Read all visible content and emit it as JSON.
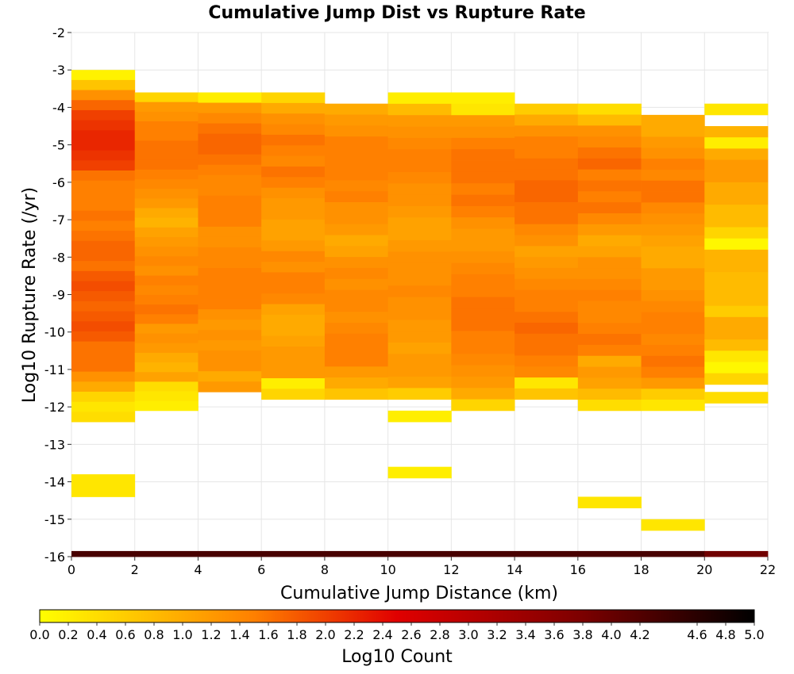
{
  "chart_data": {
    "type": "heatmap",
    "title": "Cumulative Jump Dist vs Rupture Rate",
    "xlabel": "Cumulative Jump Distance (km)",
    "ylabel": "Log10 Rupture Rate (/yr)",
    "xlim": [
      0,
      22
    ],
    "ylim": [
      -16,
      -2
    ],
    "x_ticks": [
      "0",
      "2",
      "4",
      "6",
      "8",
      "10",
      "12",
      "14",
      "16",
      "18",
      "20",
      "22"
    ],
    "y_ticks": [
      "-2",
      "-3",
      "-4",
      "-5",
      "-6",
      "-7",
      "-8",
      "-9",
      "-10",
      "-11",
      "-12",
      "-13",
      "-14",
      "-15",
      "-16"
    ],
    "x_bin_width": 2,
    "y_bin_height": 0.3,
    "grid": true,
    "colorbar": {
      "label": "Log10 Count",
      "min": 0,
      "max": 5,
      "ticks": [
        "0.0",
        "0.2",
        "0.4",
        "0.6",
        "0.8",
        "1.0",
        "1.2",
        "1.4",
        "1.6",
        "1.8",
        "2.0",
        "2.2",
        "2.4",
        "2.6",
        "2.8",
        "3.0",
        "3.2",
        "3.4",
        "3.6",
        "3.8",
        "4.0",
        "4.2",
        "4.6",
        "4.8",
        "5.0"
      ],
      "colors": [
        "#ffff00",
        "#ff8000",
        "#e00000",
        "#800000",
        "#000000"
      ]
    },
    "columns": [
      {
        "x0": 0,
        "top": -3.0,
        "bottom": -12.4,
        "values": [
          0.15,
          0.7,
          1.3,
          1.7,
          2.0,
          2.1,
          2.2,
          2.2,
          2.1,
          2.0,
          1.6,
          1.5,
          1.5,
          1.5,
          1.6,
          1.5,
          1.6,
          1.7,
          1.7,
          1.6,
          1.8,
          1.9,
          1.8,
          1.7,
          1.8,
          1.9,
          1.8,
          1.6,
          1.6,
          1.6,
          1.3,
          1.0,
          0.5,
          0.3,
          0.4
        ]
      },
      {
        "x0": 2,
        "top": -3.6,
        "bottom": -12.1,
        "values": [
          0.5,
          1.2,
          1.3,
          1.5,
          1.5,
          1.6,
          1.6,
          1.6,
          1.5,
          1.4,
          1.3,
          1.2,
          1.0,
          0.9,
          1.1,
          1.2,
          1.3,
          1.4,
          1.3,
          1.5,
          1.4,
          1.5,
          1.6,
          1.5,
          1.2,
          1.3,
          1.2,
          1.0,
          0.9,
          1.1,
          0.4,
          0.3,
          0.2
        ]
      },
      {
        "x0": 4,
        "top": -3.6,
        "bottom": -11.6,
        "values": [
          0.2,
          1.2,
          1.4,
          1.6,
          1.7,
          1.7,
          1.6,
          1.5,
          1.4,
          1.4,
          1.5,
          1.5,
          1.5,
          1.3,
          1.3,
          1.4,
          1.4,
          1.5,
          1.5,
          1.5,
          1.5,
          1.3,
          1.2,
          1.3,
          1.2,
          1.3,
          1.3,
          1.0,
          1.2
        ]
      },
      {
        "x0": 6,
        "top": -3.6,
        "bottom": -11.8,
        "values": [
          0.5,
          1.0,
          1.3,
          1.4,
          1.6,
          1.5,
          1.4,
          1.6,
          1.5,
          1.3,
          1.2,
          1.2,
          1.1,
          1.1,
          1.2,
          1.4,
          1.3,
          1.5,
          1.5,
          1.4,
          1.1,
          1.0,
          1.0,
          1.1,
          1.2,
          1.2,
          1.2,
          0.2,
          0.5
        ]
      },
      {
        "x0": 8,
        "top": -3.9,
        "bottom": -11.8,
        "values": [
          1.0,
          1.2,
          1.3,
          1.5,
          1.5,
          1.5,
          1.5,
          1.4,
          1.5,
          1.3,
          1.3,
          1.2,
          1.0,
          1.1,
          1.3,
          1.4,
          1.3,
          1.4,
          1.4,
          1.3,
          1.4,
          1.5,
          1.5,
          1.5,
          1.2,
          1.0,
          0.7
        ]
      },
      {
        "x0": 10,
        "top": -3.6,
        "bottom": -11.8,
        "values": [
          0.2,
          0.8,
          1.2,
          1.3,
          1.4,
          1.5,
          1.5,
          1.4,
          1.3,
          1.3,
          1.2,
          1.1,
          1.1,
          1.2,
          1.3,
          1.3,
          1.3,
          1.4,
          1.3,
          1.3,
          1.2,
          1.2,
          1.1,
          1.2,
          1.2,
          1.1,
          0.6
        ]
      },
      {
        "x0": 12,
        "top": -3.6,
        "bottom": -12.1,
        "values": [
          0.2,
          0.3,
          1.2,
          1.3,
          1.5,
          1.6,
          1.6,
          1.6,
          1.5,
          1.6,
          1.5,
          1.3,
          1.2,
          1.2,
          1.3,
          1.4,
          1.5,
          1.5,
          1.6,
          1.6,
          1.6,
          1.5,
          1.5,
          1.4,
          1.3,
          1.2,
          1.0,
          0.5
        ]
      },
      {
        "x0": 14,
        "top": -3.9,
        "bottom": -11.8,
        "values": [
          0.6,
          1.0,
          1.3,
          1.5,
          1.5,
          1.6,
          1.6,
          1.7,
          1.7,
          1.6,
          1.6,
          1.4,
          1.3,
          1.1,
          1.2,
          1.3,
          1.4,
          1.5,
          1.5,
          1.6,
          1.7,
          1.6,
          1.6,
          1.5,
          1.4,
          0.3,
          0.7
        ]
      },
      {
        "x0": 16,
        "top": -3.9,
        "bottom": -12.1,
        "values": [
          0.4,
          0.8,
          1.3,
          1.4,
          1.6,
          1.7,
          1.5,
          1.6,
          1.5,
          1.6,
          1.4,
          1.2,
          1.0,
          1.1,
          1.3,
          1.3,
          1.4,
          1.5,
          1.4,
          1.4,
          1.5,
          1.6,
          1.5,
          1.0,
          1.2,
          1.1,
          0.8,
          0.4
        ]
      },
      {
        "x0": 18,
        "top": -4.2,
        "bottom": -12.1,
        "values": [
          1.0,
          1.0,
          1.2,
          1.3,
          1.5,
          1.4,
          1.6,
          1.6,
          1.4,
          1.3,
          1.2,
          1.1,
          1.0,
          1.0,
          1.2,
          1.2,
          1.3,
          1.4,
          1.5,
          1.5,
          1.4,
          1.5,
          1.6,
          1.5,
          1.2,
          0.6,
          0.3
        ]
      }
    ],
    "col_20_22": [
      {
        "y0": -4.2,
        "y1": -3.9,
        "value": 0.3
      },
      {
        "y0": -4.8,
        "y1": -4.5,
        "value": 0.9
      },
      {
        "y0": -5.1,
        "y1": -4.8,
        "value": 0.2
      },
      {
        "y0": -5.4,
        "y1": -5.1,
        "value": 1.0
      },
      {
        "y0": -6.0,
        "y1": -5.4,
        "value": 1.2
      },
      {
        "y0": -6.6,
        "y1": -6.0,
        "value": 1.0
      },
      {
        "y0": -7.2,
        "y1": -6.6,
        "value": 0.8
      },
      {
        "y0": -7.5,
        "y1": -7.2,
        "value": 0.5
      },
      {
        "y0": -7.8,
        "y1": -7.5,
        "value": 0.1
      },
      {
        "y0": -8.4,
        "y1": -7.8,
        "value": 0.9
      },
      {
        "y0": -9.3,
        "y1": -8.4,
        "value": 0.8
      },
      {
        "y0": -9.6,
        "y1": -9.3,
        "value": 0.6
      },
      {
        "y0": -10.2,
        "y1": -9.6,
        "value": 1.0
      },
      {
        "y0": -10.5,
        "y1": -10.2,
        "value": 0.8
      },
      {
        "y0": -10.8,
        "y1": -10.5,
        "value": 0.3
      },
      {
        "y0": -11.1,
        "y1": -10.8,
        "value": 0.1
      },
      {
        "y0": -11.4,
        "y1": -11.1,
        "value": 0.5
      },
      {
        "y0": -11.9,
        "y1": -11.6,
        "value": 0.4
      }
    ],
    "extra_cells": [
      {
        "x0": 0,
        "x1": 2,
        "y0": -14.4,
        "y1": -13.8,
        "value": 0.3
      },
      {
        "x0": 10,
        "x1": 12,
        "y0": -12.4,
        "y1": -12.1,
        "value": 0.2
      },
      {
        "x0": 10,
        "x1": 12,
        "y0": -13.9,
        "y1": -13.6,
        "value": 0.2
      },
      {
        "x0": 16,
        "x1": 18,
        "y0": -14.7,
        "y1": -14.4,
        "value": 0.3
      },
      {
        "x0": 18,
        "x1": 20,
        "y0": -15.3,
        "y1": -15.0,
        "value": 0.3
      }
    ],
    "base_row": [
      {
        "x0": 0,
        "x1": 20,
        "y0": -16.0,
        "y1": -15.85,
        "value": 4.3
      },
      {
        "x0": 20,
        "x1": 22,
        "y0": -16.0,
        "y1": -15.85,
        "value": 3.9
      }
    ]
  }
}
